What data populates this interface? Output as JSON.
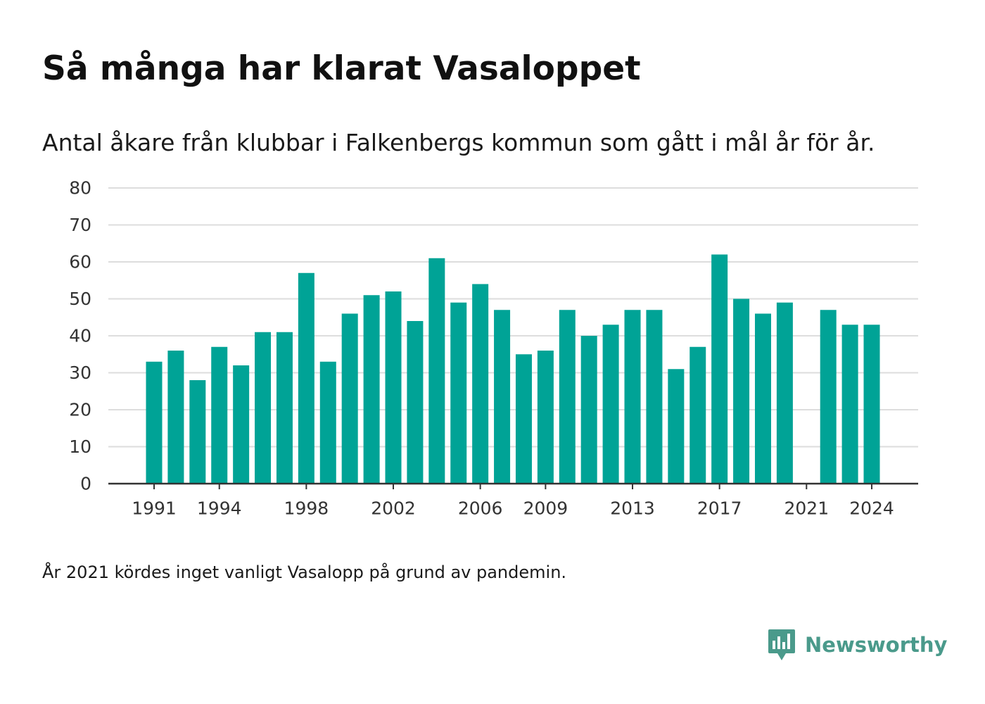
{
  "title": "Så många har klarat Vasaloppet",
  "subtitle": "Antal åkare från klubbar i Falkenbergs kommun som gått i mål år för år.",
  "footnote": "År 2021 kördes inget vanligt Vasalopp på grund av pandemin.",
  "brand": {
    "name": "Newsworthy",
    "icon": "newsworthy-logo-icon",
    "color": "#4a9a8b"
  },
  "colors": {
    "bar": "#00a396",
    "grid": "#dddddd",
    "axis": "#333333",
    "tick_text": "#333333"
  },
  "chart_data": {
    "type": "bar",
    "title": "",
    "xlabel": "",
    "ylabel": "",
    "ylim": [
      0,
      80
    ],
    "yticks": [
      0,
      10,
      20,
      30,
      40,
      50,
      60,
      70,
      80
    ],
    "xtick_labels": [
      "1991",
      "1994",
      "1998",
      "2002",
      "2006",
      "2009",
      "2013",
      "2017",
      "2021",
      "2024"
    ],
    "grid": "horizontal",
    "categories": [
      1991,
      1992,
      1993,
      1994,
      1995,
      1996,
      1997,
      1998,
      1999,
      2000,
      2001,
      2002,
      2003,
      2004,
      2005,
      2006,
      2007,
      2008,
      2009,
      2010,
      2011,
      2012,
      2013,
      2014,
      2015,
      2016,
      2017,
      2018,
      2019,
      2020,
      2021,
      2022,
      2023,
      2024
    ],
    "values": [
      33,
      36,
      28,
      37,
      32,
      41,
      41,
      57,
      33,
      46,
      51,
      52,
      44,
      61,
      49,
      54,
      47,
      35,
      36,
      47,
      40,
      43,
      47,
      47,
      31,
      37,
      62,
      50,
      46,
      49,
      null,
      47,
      43,
      43
    ]
  }
}
